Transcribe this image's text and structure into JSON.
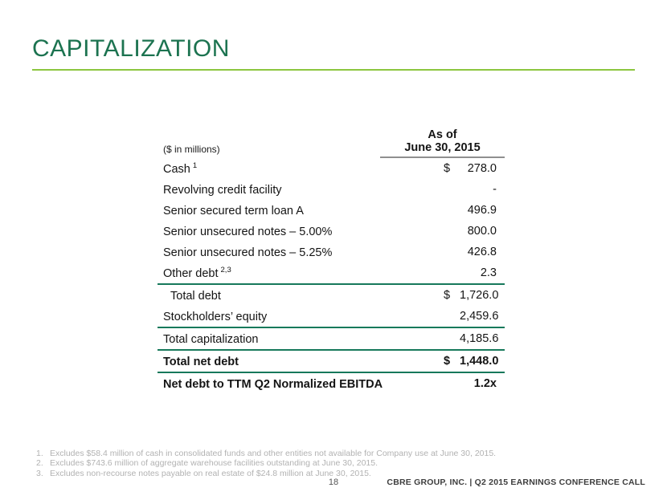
{
  "slide": {
    "title": "CAPITALIZATION",
    "page_number": "18",
    "footer_right": "CBRE GROUP, INC. | Q2 2015 EARNINGS CONFERENCE CALL"
  },
  "table": {
    "units_label": "($ in millions)",
    "header_line1": "As of",
    "header_line2": "June 30, 2015",
    "rows": [
      {
        "label": "Cash",
        "sup": "1",
        "currency": "$",
        "value": "278.0"
      },
      {
        "label": "Revolving credit facility",
        "value": "-"
      },
      {
        "label": "Senior secured term loan A",
        "value": "496.9"
      },
      {
        "label": "Senior unsecured notes – 5.00%",
        "value": "800.0"
      },
      {
        "label": "Senior unsecured notes – 5.25%",
        "value": "426.8"
      },
      {
        "label": "Other debt",
        "sup": "2,3",
        "value": "2.3"
      },
      {
        "label": "Total debt",
        "currency": "$",
        "value": "1,726.0"
      },
      {
        "label": "Stockholders’ equity",
        "value": "2,459.6"
      },
      {
        "label": "Total capitalization",
        "value": "4,185.6"
      },
      {
        "label": "Total net debt",
        "currency": "$",
        "value": "1,448.0"
      },
      {
        "label": "Net debt to TTM Q2 Normalized EBITDA",
        "value": "1.2x"
      }
    ]
  },
  "footnotes": [
    {
      "num": "1.",
      "text": "Excludes $58.4 million of cash in consolidated funds and other entities not available for Company use at June 30, 2015."
    },
    {
      "num": "2.",
      "text": "Excludes $743.6 million of aggregate warehouse facilities outstanding at June 30, 2015."
    },
    {
      "num": "3.",
      "text": "Excludes non-recourse notes payable on real estate of $24.8 million at June 30, 2015."
    }
  ],
  "colors": {
    "title_green": "#1C7350",
    "accent_light_green": "#8CC63F",
    "separator_green": "#17795B",
    "header_rule_gray": "#8F8F8F",
    "footnote_gray": "#B2B2B2",
    "footer_text": "#3D3D3D",
    "page_number_gray": "#555555"
  }
}
